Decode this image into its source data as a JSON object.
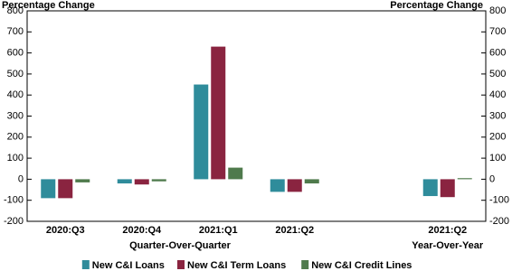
{
  "chart_data": {
    "type": "bar",
    "ylabel": "Percentage Change",
    "y2label": "Percentage Change",
    "categories": [
      "2020:Q3",
      "2020:Q4",
      "2021:Q1",
      "2021:Q2",
      null,
      "2021:Q2"
    ],
    "group_labels": [
      "Quarter-Over-Quarter",
      "Year-Over-Year"
    ],
    "series": [
      {
        "name": "New C&I Loans",
        "color": "#2f8c9b",
        "values": [
          -90,
          -20,
          450,
          -60,
          null,
          -80
        ]
      },
      {
        "name": "New C&I Term Loans",
        "color": "#8a2440",
        "values": [
          -90,
          -25,
          630,
          -60,
          null,
          -85
        ]
      },
      {
        "name": "New C&I Credit Lines",
        "color": "#4f7a4c",
        "values": [
          -15,
          -10,
          55,
          -20,
          null,
          5
        ]
      }
    ],
    "ylim": [
      -200,
      800
    ],
    "yticks": [
      -200,
      -100,
      0,
      100,
      200,
      300,
      400,
      500,
      600,
      700,
      800
    ],
    "y2lim": [
      -200,
      800
    ],
    "y2ticks": [
      -200,
      -100,
      0,
      100,
      200,
      300,
      400,
      500,
      600,
      700,
      800
    ],
    "legend": "bottom"
  }
}
